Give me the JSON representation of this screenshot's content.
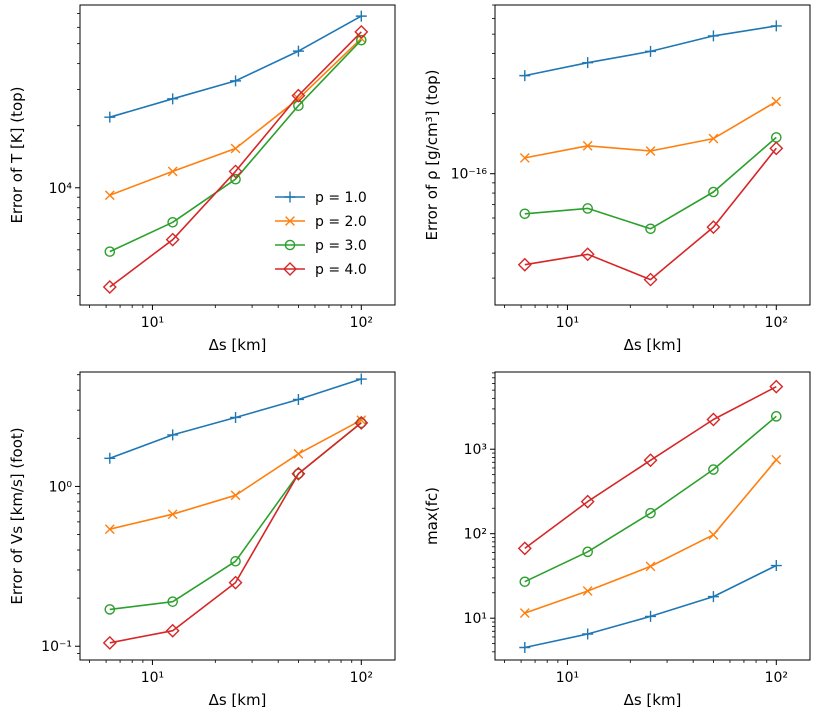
{
  "chart_data": [
    {
      "type": "line",
      "panel": "top-left",
      "xscale": "log",
      "yscale": "log",
      "xlabel": "Δs [km]",
      "ylabel": "Error of T [K] (top)",
      "xlim": [
        4.5,
        145
      ],
      "ylim": [
        2700,
        77000
      ],
      "x": [
        6.25,
        12.5,
        25,
        50,
        100
      ],
      "series": [
        {
          "name": "p = 1.0",
          "values": [
            22000,
            27000,
            33000,
            46000,
            68000
          ]
        },
        {
          "name": "p = 2.0",
          "values": [
            9200,
            12000,
            15500,
            27000,
            53000
          ]
        },
        {
          "name": "p = 3.0",
          "values": [
            4900,
            6800,
            11000,
            25000,
            52000
          ]
        },
        {
          "name": "p = 4.0",
          "values": [
            3300,
            5600,
            12000,
            28000,
            57000
          ]
        }
      ],
      "legend": {
        "position": "lower-right",
        "entries": [
          "p = 1.0",
          "p = 2.0",
          "p = 3.0",
          "p = 4.0"
        ]
      }
    },
    {
      "type": "line",
      "panel": "top-right",
      "xscale": "log",
      "yscale": "log",
      "xlabel": "Δs [km]",
      "ylabel": "Error of ρ [g/cm³] (top)",
      "xlim": [
        4.5,
        145
      ],
      "ylim": [
        2.2e-17,
        7e-16
      ],
      "x": [
        6.25,
        12.5,
        25,
        50,
        100
      ],
      "series": [
        {
          "name": "p = 1.0",
          "values": [
            3.1e-16,
            3.6e-16,
            4.1e-16,
            4.9e-16,
            5.5e-16
          ]
        },
        {
          "name": "p = 2.0",
          "values": [
            1.2e-16,
            1.38e-16,
            1.3e-16,
            1.5e-16,
            2.3e-16
          ]
        },
        {
          "name": "p = 3.0",
          "values": [
            6.3e-17,
            6.7e-17,
            5.3e-17,
            8.1e-17,
            1.52e-16
          ]
        },
        {
          "name": "p = 4.0",
          "values": [
            3.5e-17,
            3.95e-17,
            2.95e-17,
            5.4e-17,
            1.34e-16
          ]
        }
      ]
    },
    {
      "type": "line",
      "panel": "bottom-left",
      "xscale": "log",
      "yscale": "log",
      "xlabel": "Δs [km]",
      "ylabel": "Error of Vs [km/s] (foot)",
      "xlim": [
        4.5,
        145
      ],
      "ylim": [
        0.082,
        5.2
      ],
      "x": [
        6.25,
        12.5,
        25,
        50,
        100
      ],
      "series": [
        {
          "name": "p = 1.0",
          "values": [
            1.5,
            2.1,
            2.7,
            3.5,
            4.7
          ]
        },
        {
          "name": "p = 2.0",
          "values": [
            0.54,
            0.67,
            0.88,
            1.6,
            2.6
          ]
        },
        {
          "name": "p = 3.0",
          "values": [
            0.17,
            0.19,
            0.34,
            1.2,
            2.5
          ]
        },
        {
          "name": "p = 4.0",
          "values": [
            0.105,
            0.125,
            0.25,
            1.2,
            2.5
          ]
        }
      ]
    },
    {
      "type": "line",
      "panel": "bottom-right",
      "xscale": "log",
      "yscale": "log",
      "xlabel": "Δs [km]",
      "ylabel": "max(fc)",
      "xlim": [
        4.5,
        145
      ],
      "ylim": [
        3.2,
        8200
      ],
      "x": [
        6.25,
        12.5,
        25,
        50,
        100
      ],
      "series": [
        {
          "name": "p = 1.0",
          "values": [
            4.5,
            6.5,
            10.5,
            18,
            42
          ]
        },
        {
          "name": "p = 2.0",
          "values": [
            11.5,
            21,
            41,
            97,
            750
          ]
        },
        {
          "name": "p = 3.0",
          "values": [
            27,
            61,
            175,
            575,
            2450
          ]
        },
        {
          "name": "p = 4.0",
          "values": [
            67,
            240,
            740,
            2250,
            5500
          ]
        }
      ]
    }
  ],
  "colors": {
    "p1": "#1f77b4",
    "p2": "#ff7f0e",
    "p3": "#2ca02c",
    "p4": "#d62728"
  },
  "markers": {
    "p1": "plus",
    "p2": "x-mark",
    "p3": "circle",
    "p4": "diamond"
  }
}
